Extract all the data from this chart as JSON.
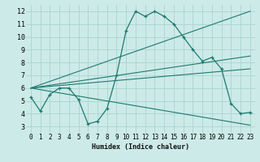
{
  "xlabel": "Humidex (Indice chaleur)",
  "bg_color": "#cceae8",
  "grid_color": "#aad4d0",
  "line_color": "#1e7a6e",
  "main_curve": [
    5.3,
    4.2,
    5.5,
    6.0,
    6.0,
    5.1,
    3.2,
    3.4,
    4.4,
    7.0,
    10.5,
    12.0,
    11.6,
    12.0,
    11.6,
    11.0,
    10.0,
    9.0,
    8.1,
    8.4,
    7.5,
    4.8,
    4.0,
    4.1
  ],
  "xvals": [
    0,
    1,
    2,
    3,
    4,
    5,
    6,
    7,
    8,
    9,
    10,
    11,
    12,
    13,
    14,
    15,
    16,
    17,
    18,
    19,
    20,
    21,
    22,
    23
  ],
  "ylim": [
    2.5,
    12.5
  ],
  "xlim": [
    -0.5,
    23.5
  ],
  "yticks": [
    3,
    4,
    5,
    6,
    7,
    8,
    9,
    10,
    11,
    12
  ],
  "xticks": [
    0,
    1,
    2,
    3,
    4,
    5,
    6,
    7,
    8,
    9,
    10,
    11,
    12,
    13,
    14,
    15,
    16,
    17,
    18,
    19,
    20,
    21,
    22,
    23
  ],
  "trend_lines": [
    {
      "x0": 0,
      "y0": 6.0,
      "x1": 23,
      "y1": 12.0
    },
    {
      "x0": 0,
      "y0": 6.0,
      "x1": 23,
      "y1": 8.5
    },
    {
      "x0": 0,
      "y0": 6.0,
      "x1": 23,
      "y1": 7.5
    },
    {
      "x0": 0,
      "y0": 6.0,
      "x1": 23,
      "y1": 3.1
    }
  ]
}
